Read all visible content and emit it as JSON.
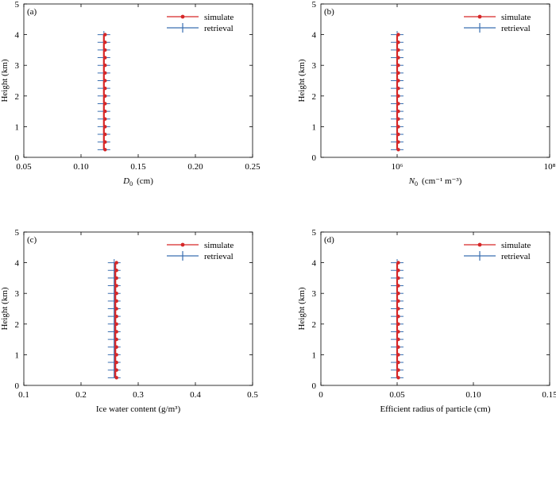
{
  "colors": {
    "simulate": "#d62728",
    "retrieval": "#3a6fb0",
    "axis": "#000000"
  },
  "chart_data": [
    {
      "type": "line",
      "panel_label": "(a)",
      "xlabel": "D₀ (cm)",
      "xlabel_main": "D",
      "xlabel_sub": "0",
      "xlabel_unit": "(cm)",
      "ylabel": "Height (km)",
      "xscale": "linear",
      "xlim": [
        0.05,
        0.25
      ],
      "ylim": [
        0,
        5
      ],
      "xticks": [
        0.05,
        0.1,
        0.15,
        0.2,
        0.25
      ],
      "xtick_labels": [
        "0.05",
        "0.10",
        "0.15",
        "0.20",
        "0.25"
      ],
      "yticks": [
        0,
        1,
        2,
        3,
        4,
        5
      ],
      "ytick_labels": [
        "0",
        "1",
        "2",
        "3",
        "4",
        "5"
      ],
      "legend": [
        "simulate",
        "retrieval"
      ],
      "legend_position": "top-right",
      "series": [
        {
          "name": "simulate",
          "y": [
            0.25,
            0.5,
            0.75,
            1.0,
            1.25,
            1.5,
            1.75,
            2.0,
            2.25,
            2.5,
            2.75,
            3.0,
            3.25,
            3.5,
            3.75,
            4.0
          ],
          "x": [
            0.12,
            0.12,
            0.12,
            0.12,
            0.12,
            0.12,
            0.12,
            0.12,
            0.12,
            0.12,
            0.12,
            0.12,
            0.12,
            0.12,
            0.12,
            0.12
          ]
        },
        {
          "name": "retrieval",
          "y": [
            0.25,
            0.5,
            0.75,
            1.0,
            1.25,
            1.5,
            1.75,
            2.0,
            2.25,
            2.5,
            2.75,
            3.0,
            3.25,
            3.5,
            3.75,
            4.0
          ],
          "x": [
            0.12,
            0.12,
            0.12,
            0.12,
            0.12,
            0.12,
            0.12,
            0.12,
            0.12,
            0.12,
            0.12,
            0.12,
            0.12,
            0.12,
            0.12,
            0.12
          ]
        }
      ]
    },
    {
      "type": "line",
      "panel_label": "(b)",
      "xlabel": "N₀ (cm⁻¹ m⁻³)",
      "xlabel_main": "N",
      "xlabel_sub": "0",
      "xlabel_unit": "(cm⁻¹ m⁻³)",
      "ylabel": "Height (km)",
      "xscale": "log",
      "xlim": [
        100000,
        100000000
      ],
      "ylim": [
        0,
        5
      ],
      "xticks": [
        1000000,
        100000000
      ],
      "xtick_labels": [
        "10⁶",
        "10⁸"
      ],
      "yticks": [
        0,
        1,
        2,
        3,
        4,
        5
      ],
      "ytick_labels": [
        "0",
        "1",
        "2",
        "3",
        "4",
        "5"
      ],
      "legend": [
        "simulate",
        "retrieval"
      ],
      "legend_position": "top-right",
      "series": [
        {
          "name": "simulate",
          "y": [
            0.25,
            0.5,
            0.75,
            1.0,
            1.25,
            1.5,
            1.75,
            2.0,
            2.25,
            2.5,
            2.75,
            3.0,
            3.25,
            3.5,
            3.75,
            4.0
          ],
          "x": [
            1000000,
            1000000,
            1000000,
            1000000,
            1000000,
            1000000,
            1000000,
            1000000,
            1000000,
            1000000,
            1000000,
            1000000,
            1000000,
            1000000,
            1000000,
            1000000
          ]
        },
        {
          "name": "retrieval",
          "y": [
            0.25,
            0.5,
            0.75,
            1.0,
            1.25,
            1.5,
            1.75,
            2.0,
            2.25,
            2.5,
            2.75,
            3.0,
            3.25,
            3.5,
            3.75,
            4.0
          ],
          "x": [
            1000000,
            1000000,
            1000000,
            1000000,
            1000000,
            1000000,
            1000000,
            1000000,
            1000000,
            1000000,
            1000000,
            1000000,
            1000000,
            1000000,
            1000000,
            1000000
          ]
        }
      ]
    },
    {
      "type": "line",
      "panel_label": "(c)",
      "xlabel": "Ice water content (g/m³)",
      "xlabel_main": "Ice water content (g/m³)",
      "xlabel_sub": "",
      "xlabel_unit": "",
      "ylabel": "Height (km)",
      "xscale": "linear",
      "xlim": [
        0.1,
        0.5
      ],
      "ylim": [
        0,
        5
      ],
      "xticks": [
        0.1,
        0.2,
        0.3,
        0.4,
        0.5
      ],
      "xtick_labels": [
        "0.1",
        "0.2",
        "0.3",
        "0.4",
        "0.5"
      ],
      "yticks": [
        0,
        1,
        2,
        3,
        4,
        5
      ],
      "ytick_labels": [
        "0",
        "1",
        "2",
        "3",
        "4",
        "5"
      ],
      "legend": [
        "simulate",
        "retrieval"
      ],
      "legend_position": "top-right",
      "series": [
        {
          "name": "simulate",
          "y": [
            0.25,
            0.5,
            0.75,
            1.0,
            1.25,
            1.5,
            1.75,
            2.0,
            2.25,
            2.5,
            2.75,
            3.0,
            3.25,
            3.5,
            3.75,
            4.0
          ],
          "x": [
            0.26,
            0.26,
            0.26,
            0.26,
            0.26,
            0.26,
            0.26,
            0.26,
            0.26,
            0.26,
            0.26,
            0.26,
            0.26,
            0.26,
            0.26,
            0.26
          ]
        },
        {
          "name": "retrieval",
          "y": [
            0.25,
            0.5,
            0.75,
            1.0,
            1.25,
            1.5,
            1.75,
            2.0,
            2.25,
            2.5,
            2.75,
            3.0,
            3.25,
            3.5,
            3.75,
            4.0
          ],
          "x": [
            0.258,
            0.258,
            0.258,
            0.258,
            0.258,
            0.258,
            0.258,
            0.258,
            0.258,
            0.258,
            0.258,
            0.258,
            0.258,
            0.258,
            0.258,
            0.258
          ]
        }
      ]
    },
    {
      "type": "line",
      "panel_label": "(d)",
      "xlabel": "Efficient radius of particle (cm)",
      "xlabel_main": "Efficient radius of particle (cm)",
      "xlabel_sub": "",
      "xlabel_unit": "",
      "ylabel": "Height (km)",
      "xscale": "linear",
      "xlim": [
        0,
        0.15
      ],
      "ylim": [
        0,
        5
      ],
      "xticks": [
        0,
        0.05,
        0.1,
        0.15
      ],
      "xtick_labels": [
        "0",
        "0.05",
        "0.10",
        "0.15"
      ],
      "yticks": [
        0,
        1,
        2,
        3,
        4,
        5
      ],
      "ytick_labels": [
        "0",
        "1",
        "2",
        "3",
        "4",
        "5"
      ],
      "legend": [
        "simulate",
        "retrieval"
      ],
      "legend_position": "top-right",
      "series": [
        {
          "name": "simulate",
          "y": [
            0.25,
            0.5,
            0.75,
            1.0,
            1.25,
            1.5,
            1.75,
            2.0,
            2.25,
            2.5,
            2.75,
            3.0,
            3.25,
            3.5,
            3.75,
            4.0
          ],
          "x": [
            0.05,
            0.05,
            0.05,
            0.05,
            0.05,
            0.05,
            0.05,
            0.05,
            0.05,
            0.05,
            0.05,
            0.05,
            0.05,
            0.05,
            0.05,
            0.05
          ]
        },
        {
          "name": "retrieval",
          "y": [
            0.25,
            0.5,
            0.75,
            1.0,
            1.25,
            1.5,
            1.75,
            2.0,
            2.25,
            2.5,
            2.75,
            3.0,
            3.25,
            3.5,
            3.75,
            4.0
          ],
          "x": [
            0.05,
            0.05,
            0.05,
            0.05,
            0.05,
            0.05,
            0.05,
            0.05,
            0.05,
            0.05,
            0.05,
            0.05,
            0.05,
            0.05,
            0.05,
            0.05
          ]
        }
      ]
    }
  ]
}
